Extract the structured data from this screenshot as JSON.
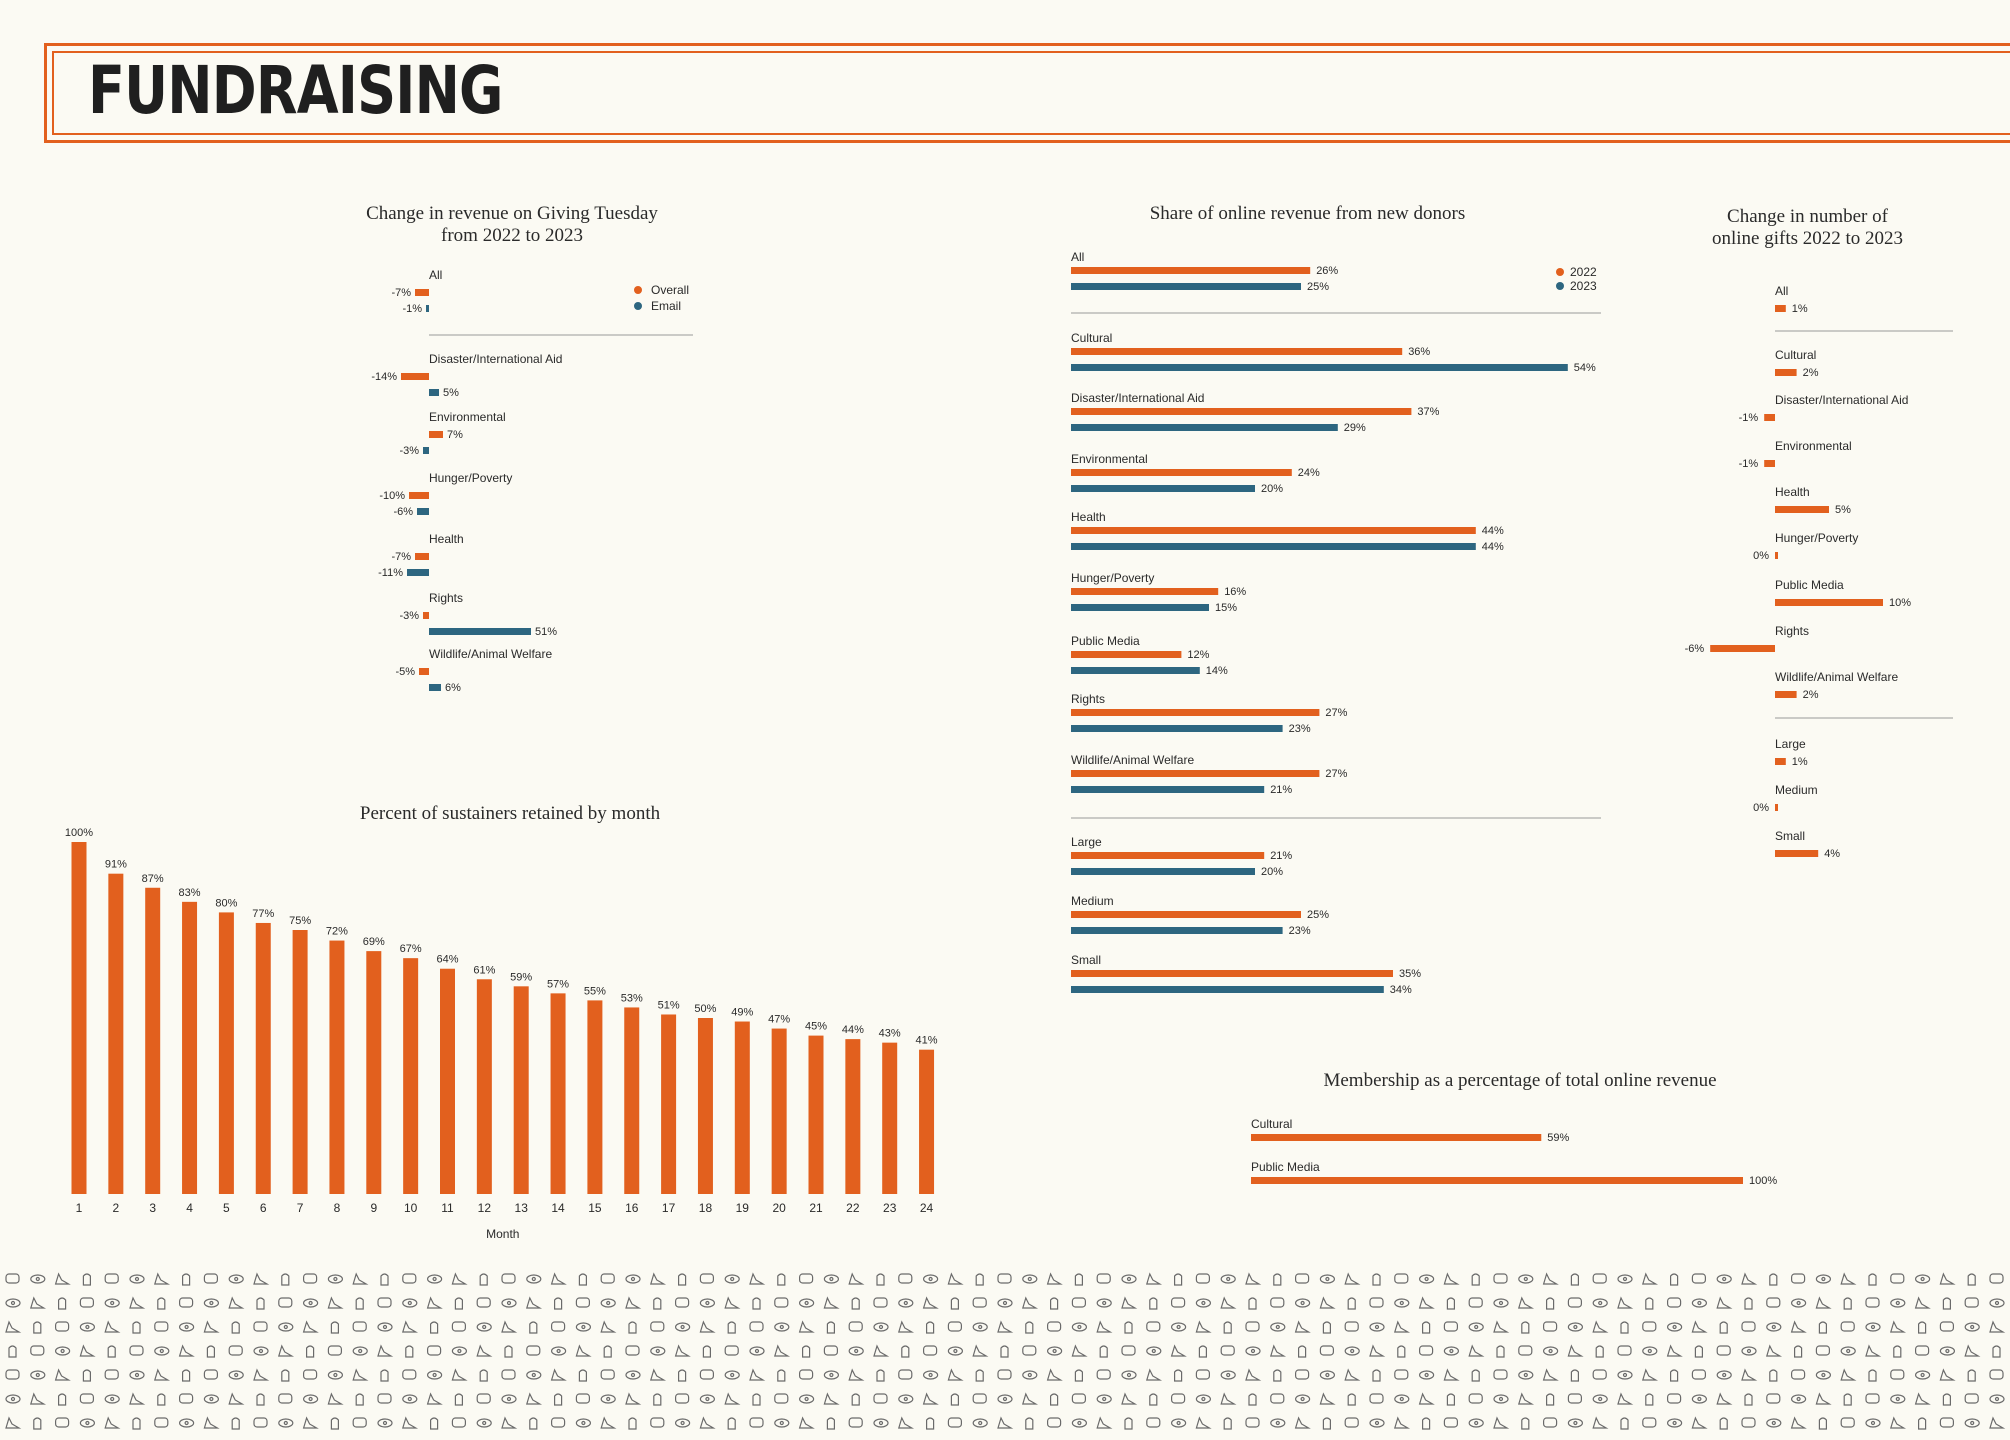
{
  "page": {
    "title": "FUNDRAISING"
  },
  "colors": {
    "orange": "#e2601e",
    "blue": "#2d6680",
    "text": "#2a2a2a",
    "rule": "#9a9a9a"
  },
  "chart_data": [
    {
      "id": "giving_tuesday",
      "type": "bar",
      "orientation": "horizontal",
      "title": "Change in revenue on Giving Tuesday from 2022 to 2023",
      "title_lines": [
        "Change in revenue on Giving Tuesday",
        "from 2022 to 2023"
      ],
      "legend": [
        "Overall",
        "Email"
      ],
      "unit": "%",
      "categories": [
        "All",
        "Disaster/International Aid",
        "Environmental",
        "Hunger/Poverty",
        "Health",
        "Rights",
        "Wildlife/Animal Welfare"
      ],
      "series": [
        {
          "name": "Overall",
          "values": [
            -7,
            -14,
            7,
            -10,
            -7,
            -3,
            -5
          ]
        },
        {
          "name": "Email",
          "values": [
            -1,
            5,
            -3,
            -6,
            -11,
            51,
            6
          ]
        }
      ]
    },
    {
      "id": "new_donors",
      "type": "bar",
      "orientation": "horizontal",
      "title": "Share of online revenue from new donors",
      "legend": [
        "2022",
        "2023"
      ],
      "unit": "%",
      "categories": [
        "All",
        "Cultural",
        "Disaster/International Aid",
        "Environmental",
        "Health",
        "Hunger/Poverty",
        "Public Media",
        "Rights",
        "Wildlife/Animal Welfare",
        "Large",
        "Medium",
        "Small"
      ],
      "series": [
        {
          "name": "2022",
          "values": [
            26,
            36,
            37,
            24,
            44,
            16,
            12,
            27,
            27,
            21,
            25,
            35
          ]
        },
        {
          "name": "2023",
          "values": [
            25,
            54,
            29,
            20,
            44,
            15,
            14,
            23,
            21,
            20,
            23,
            34
          ]
        }
      ]
    },
    {
      "id": "online_gifts",
      "type": "bar",
      "orientation": "horizontal",
      "title": "Change in number of online gifts 2022 to 2023",
      "title_lines": [
        "Change in number of",
        "online gifts 2022 to 2023"
      ],
      "unit": "%",
      "categories": [
        "All",
        "Cultural",
        "Disaster/International Aid",
        "Environmental",
        "Health",
        "Hunger/Poverty",
        "Public Media",
        "Rights",
        "Wildlife/Animal Welfare",
        "Large",
        "Medium",
        "Small"
      ],
      "values": [
        1,
        2,
        -1,
        -1,
        5,
        0,
        10,
        -6,
        2,
        1,
        0,
        4
      ]
    },
    {
      "id": "sustainers",
      "type": "bar",
      "title": "Percent of sustainers retained by month",
      "xlabel": "Month",
      "ylabel": "",
      "unit": "%",
      "ylim": [
        0,
        100
      ],
      "categories": [
        "1",
        "2",
        "3",
        "4",
        "5",
        "6",
        "7",
        "8",
        "9",
        "10",
        "11",
        "12",
        "13",
        "14",
        "15",
        "16",
        "17",
        "18",
        "19",
        "20",
        "21",
        "22",
        "23",
        "24"
      ],
      "values": [
        100,
        91,
        87,
        83,
        80,
        77,
        75,
        72,
        69,
        67,
        64,
        61,
        59,
        57,
        55,
        53,
        51,
        50,
        49,
        47,
        45,
        44,
        43,
        41
      ]
    },
    {
      "id": "membership",
      "type": "bar",
      "orientation": "horizontal",
      "title": "Membership as a percentage of total online revenue",
      "unit": "%",
      "categories": [
        "Cultural",
        "Public Media"
      ],
      "values": [
        59,
        100
      ]
    }
  ]
}
